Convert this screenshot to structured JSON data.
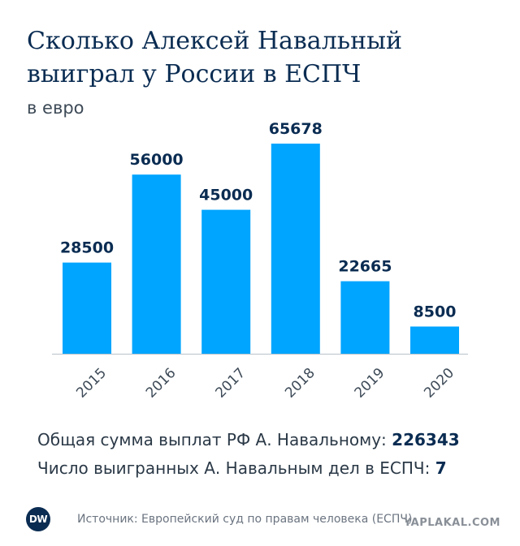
{
  "chart_data": {
    "type": "bar",
    "title": "Сколько Алексей Навальный выиграл у России в ЕСПЧ",
    "subtitle": "в евро",
    "categories": [
      "2015",
      "2016",
      "2017",
      "2018",
      "2019",
      "2020"
    ],
    "values": [
      28500,
      56000,
      45000,
      65678,
      22665,
      8500
    ],
    "data_labels": [
      "28500",
      "56000",
      "45000",
      "65678",
      "22665",
      "8500"
    ],
    "ylim": [
      0,
      70000
    ],
    "grid": false,
    "legend": "none",
    "bar_color": "#00a5ff"
  },
  "summary": {
    "total_label": "Общая сумма выплат РФ А. Навальному:",
    "total_value": "226343",
    "cases_label": "Число выигранных А. Навальным дел в ЕСПЧ:",
    "cases_value": "7"
  },
  "footer": {
    "logo_text": "DW",
    "source": "Источник: Европейский суд по правам человека (ЕСПЧ)"
  },
  "watermark": "YAPLAKAL.COM",
  "colors": {
    "title": "#0a2c52",
    "bar": "#00a5ff",
    "text": "#2b3947"
  }
}
